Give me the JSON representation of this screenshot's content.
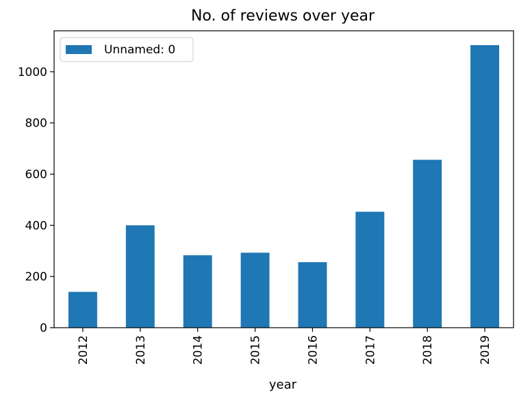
{
  "chart_data": {
    "type": "bar",
    "title": "No. of reviews over year",
    "xlabel": "year",
    "ylabel": "",
    "categories": [
      "2012",
      "2013",
      "2014",
      "2015",
      "2016",
      "2017",
      "2018",
      "2019"
    ],
    "series": [
      {
        "name": "Unnamed: 0",
        "values": [
          140,
          400,
          283,
          293,
          256,
          453,
          656,
          1104
        ],
        "color": "#1f77b4"
      }
    ],
    "ylim": [
      0,
      1160
    ],
    "yticks": [
      0,
      200,
      400,
      600,
      800,
      1000
    ],
    "grid": false,
    "legend_position": "top-left"
  }
}
